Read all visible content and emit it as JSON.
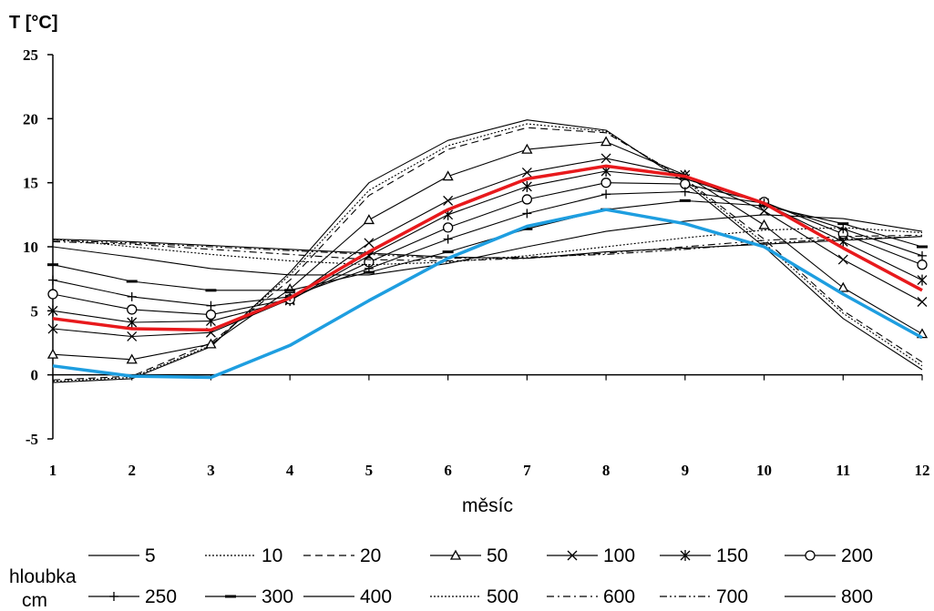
{
  "chart_data": {
    "type": "line",
    "ylabel": "T [°C]",
    "xlabel": "měsíc",
    "ylim": [
      -5,
      25
    ],
    "yticks": [
      -5,
      0,
      5,
      10,
      15,
      20,
      25
    ],
    "xticks": [
      1,
      2,
      3,
      4,
      5,
      6,
      7,
      8,
      9,
      10,
      11,
      12
    ],
    "x": [
      1,
      2,
      3,
      4,
      5,
      6,
      7,
      8,
      9,
      10,
      11,
      12
    ],
    "legend_title": "hloubka cm",
    "legend_position": "bottom",
    "grid": false,
    "series": [
      {
        "name": "5",
        "style": "solid",
        "marker": "none",
        "color": "#000000",
        "values": [
          -0.6,
          -0.3,
          2.2,
          8.0,
          15.0,
          18.3,
          19.9,
          19.1,
          15.0,
          10.0,
          4.4,
          0.4
        ]
      },
      {
        "name": "10",
        "style": "dotted",
        "marker": "none",
        "color": "#000000",
        "values": [
          -0.5,
          -0.2,
          2.3,
          7.8,
          14.4,
          17.9,
          19.6,
          19.0,
          15.2,
          10.3,
          4.8,
          0.7
        ]
      },
      {
        "name": "20",
        "style": "dashed",
        "marker": "none",
        "color": "#000000",
        "values": [
          -0.4,
          -0.1,
          2.5,
          7.4,
          14.0,
          17.6,
          19.3,
          18.9,
          15.3,
          10.6,
          5.0,
          1.0
        ]
      },
      {
        "name": "50",
        "style": "solid",
        "marker": "triangle",
        "color": "#000000",
        "values": [
          1.6,
          1.2,
          2.4,
          6.7,
          12.1,
          15.5,
          17.6,
          18.2,
          15.6,
          11.7,
          6.8,
          3.2
        ]
      },
      {
        "name": "100",
        "style": "solid",
        "marker": "x",
        "color": "#000000",
        "values": [
          3.6,
          3.0,
          3.3,
          5.9,
          10.3,
          13.6,
          15.8,
          16.9,
          15.6,
          12.8,
          9.0,
          5.7
        ]
      },
      {
        "name": "150",
        "style": "solid",
        "marker": "star",
        "color": "#000000",
        "values": [
          5.0,
          4.1,
          4.2,
          5.8,
          9.3,
          12.5,
          14.7,
          15.9,
          15.3,
          13.4,
          10.4,
          7.4
        ]
      },
      {
        "name": "200",
        "style": "solid",
        "marker": "circle",
        "color": "#000000",
        "values": [
          6.3,
          5.1,
          4.7,
          5.9,
          8.8,
          11.5,
          13.7,
          15.0,
          14.9,
          13.5,
          11.0,
          8.6
        ]
      },
      {
        "name": "250",
        "style": "solid",
        "marker": "plus",
        "color": "#000000",
        "values": [
          7.4,
          6.1,
          5.4,
          6.1,
          8.3,
          10.6,
          12.6,
          14.1,
          14.3,
          13.4,
          11.4,
          9.3
        ]
      },
      {
        "name": "300",
        "style": "solid",
        "marker": "dash",
        "color": "#000000",
        "values": [
          8.6,
          7.3,
          6.6,
          6.6,
          8.0,
          9.6,
          11.4,
          12.9,
          13.6,
          13.2,
          11.8,
          10.0
        ]
      },
      {
        "name": "400",
        "style": "solid",
        "marker": "none",
        "color": "#000000",
        "values": [
          10.0,
          9.2,
          8.3,
          7.8,
          7.8,
          8.7,
          10.0,
          11.2,
          12.0,
          12.5,
          12.2,
          11.2
        ]
      },
      {
        "name": "500",
        "style": "dotted",
        "marker": "none",
        "color": "#000000",
        "values": [
          10.6,
          10.0,
          9.4,
          8.9,
          8.6,
          8.8,
          9.3,
          10.0,
          10.7,
          11.3,
          11.5,
          11.1
        ]
      },
      {
        "name": "600",
        "style": "dashdot",
        "marker": "none",
        "color": "#000000",
        "values": [
          10.4,
          10.2,
          9.8,
          9.4,
          9.0,
          8.9,
          9.1,
          9.5,
          10.0,
          10.5,
          10.8,
          10.9
        ]
      },
      {
        "name": "700",
        "style": "dashdotdot",
        "marker": "none",
        "color": "#000000",
        "values": [
          10.5,
          10.3,
          10.0,
          9.7,
          9.4,
          9.1,
          9.2,
          9.4,
          9.8,
          10.3,
          10.6,
          10.8
        ]
      },
      {
        "name": "800",
        "style": "solid",
        "marker": "none",
        "color": "#000000",
        "values": [
          10.6,
          10.4,
          10.1,
          9.8,
          9.5,
          9.2,
          9.1,
          9.6,
          9.9,
          10.2,
          10.5,
          10.8
        ]
      },
      {
        "style": "solid",
        "marker": "none",
        "color": "#e8191c",
        "highlight": true,
        "values": [
          4.4,
          3.6,
          3.5,
          6.0,
          9.6,
          12.9,
          15.3,
          16.3,
          15.5,
          13.4,
          9.9,
          6.6
        ]
      },
      {
        "style": "solid",
        "marker": "none",
        "color": "#1e9ee0",
        "highlight": true,
        "values": [
          0.7,
          -0.1,
          -0.2,
          2.3,
          5.8,
          9.1,
          11.6,
          12.9,
          11.8,
          10.0,
          6.3,
          2.9
        ]
      }
    ]
  }
}
